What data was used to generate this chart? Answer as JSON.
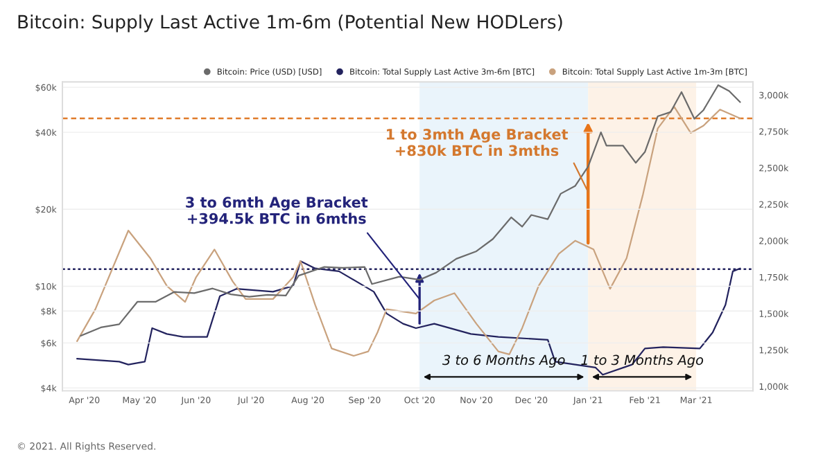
{
  "chart_data": {
    "type": "line",
    "title": "Bitcoin: Supply Last Active 1m-6m (Potential New HODLers)",
    "xlim": [
      "2020-03-20",
      "2021-04-01"
    ],
    "xticks": [
      {
        "value": "2020-04-01",
        "label": "Apr '20"
      },
      {
        "value": "2020-05-01",
        "label": "May '20"
      },
      {
        "value": "2020-06-01",
        "label": "Jun '20"
      },
      {
        "value": "2020-07-01",
        "label": "Jul '20"
      },
      {
        "value": "2020-08-01",
        "label": "Aug '20"
      },
      {
        "value": "2020-09-01",
        "label": "Sep '20"
      },
      {
        "value": "2020-10-01",
        "label": "Oct '20"
      },
      {
        "value": "2020-11-01",
        "label": "Nov '20"
      },
      {
        "value": "2020-12-01",
        "label": "Dec '20"
      },
      {
        "value": "2021-01-01",
        "label": "Jan '21"
      },
      {
        "value": "2021-02-01",
        "label": "Feb '21"
      },
      {
        "value": "2021-03-01",
        "label": "Mar '21"
      }
    ],
    "log": "y",
    "ylim": [
      3900,
      63000
    ],
    "yticks": [
      {
        "value": 4000,
        "label": "$4k"
      },
      {
        "value": 6000,
        "label": "$6k"
      },
      {
        "value": 8000,
        "label": "$8k"
      },
      {
        "value": 10000,
        "label": "$10k"
      },
      {
        "value": 20000,
        "label": "$20k"
      },
      {
        "value": 40000,
        "label": "$40k"
      },
      {
        "value": 60000,
        "label": "$60k"
      }
    ],
    "y2lim": [
      970,
      3090
    ],
    "y2ticks": [
      {
        "value": 1000,
        "label": "1,000k"
      },
      {
        "value": 1250,
        "label": "1,250k"
      },
      {
        "value": 1500,
        "label": "1,500k"
      },
      {
        "value": 1750,
        "label": "1,750k"
      },
      {
        "value": 2000,
        "label": "2,000k"
      },
      {
        "value": 2250,
        "label": "2,250k"
      },
      {
        "value": 2500,
        "label": "2,500k"
      },
      {
        "value": 2750,
        "label": "2,750k"
      },
      {
        "value": 3000,
        "label": "3,000k"
      }
    ],
    "grid": "y",
    "legend": "top right",
    "series": [
      {
        "name": "Bitcoin: Price (USD) [USD]",
        "color": "#6b6b6b",
        "x": [
          "2020-03-30",
          "2020-04-10",
          "2020-04-20",
          "2020-04-30",
          "2020-05-10",
          "2020-05-20",
          "2020-05-31",
          "2020-06-10",
          "2020-06-20",
          "2020-06-30",
          "2020-07-10",
          "2020-07-20",
          "2020-07-27",
          "2020-08-10",
          "2020-08-20",
          "2020-09-01",
          "2020-09-05",
          "2020-09-20",
          "2020-10-01",
          "2020-10-10",
          "2020-10-21",
          "2020-11-01",
          "2020-11-10",
          "2020-11-20",
          "2020-11-26",
          "2020-12-01",
          "2020-12-10",
          "2020-12-17",
          "2020-12-25",
          "2021-01-01",
          "2021-01-08",
          "2021-01-11",
          "2021-01-20",
          "2021-01-27",
          "2021-02-01",
          "2021-02-08",
          "2021-02-15",
          "2021-02-21",
          "2021-02-28",
          "2021-03-05",
          "2021-03-13",
          "2021-03-19",
          "2021-03-25"
        ],
        "values": [
          6400,
          6900,
          7100,
          8700,
          8700,
          9500,
          9400,
          9800,
          9300,
          9100,
          9250,
          9200,
          11000,
          11900,
          11800,
          11900,
          10200,
          10900,
          10600,
          11300,
          12800,
          13700,
          15300,
          18600,
          17100,
          19000,
          18300,
          23000,
          24700,
          29400,
          40000,
          35500,
          35500,
          30400,
          33500,
          46200,
          48000,
          57500,
          45200,
          48900,
          61200,
          58000,
          52500
        ]
      },
      {
        "name": "Bitcoin: Total Supply Last Active 3m-6m [BTC]",
        "color": "#23235e",
        "axis": "y2",
        "x": [
          "2020-03-28",
          "2020-04-20",
          "2020-04-25",
          "2020-05-04",
          "2020-05-08",
          "2020-05-16",
          "2020-05-25",
          "2020-06-07",
          "2020-06-14",
          "2020-06-23",
          "2020-07-13",
          "2020-07-24",
          "2020-07-28",
          "2020-08-05",
          "2020-08-18",
          "2020-09-06",
          "2020-09-13",
          "2020-09-22",
          "2020-09-29",
          "2020-10-09",
          "2020-10-29",
          "2020-11-13",
          "2020-12-10",
          "2020-12-14",
          "2021-01-05",
          "2021-01-09",
          "2021-01-25",
          "2021-02-01",
          "2021-02-11",
          "2021-03-03",
          "2021-03-10",
          "2021-03-17",
          "2021-03-21",
          "2021-03-25"
        ],
        "values": [
          1190,
          1170,
          1150,
          1170,
          1400,
          1360,
          1340,
          1340,
          1620,
          1670,
          1650,
          1690,
          1860,
          1810,
          1790,
          1650,
          1500,
          1430,
          1400,
          1430,
          1360,
          1340,
          1320,
          1170,
          1130,
          1080,
          1150,
          1260,
          1270,
          1260,
          1370,
          1560,
          1790,
          1810
        ]
      },
      {
        "name": "Bitcoin: Total Supply Last Active 1m-3m [BTC]",
        "color": "#c9a27e",
        "axis": "y2",
        "x": [
          "2020-03-28",
          "2020-04-07",
          "2020-04-25",
          "2020-05-07",
          "2020-05-16",
          "2020-05-26",
          "2020-06-01",
          "2020-06-11",
          "2020-06-21",
          "2020-06-28",
          "2020-07-13",
          "2020-07-24",
          "2020-07-28",
          "2020-08-05",
          "2020-08-14",
          "2020-08-26",
          "2020-09-03",
          "2020-09-08",
          "2020-09-13",
          "2020-09-29",
          "2020-10-09",
          "2020-10-20",
          "2020-11-01",
          "2020-11-13",
          "2020-11-19",
          "2020-11-26",
          "2020-12-05",
          "2020-12-16",
          "2020-12-25",
          "2021-01-04",
          "2021-01-13",
          "2021-01-22",
          "2021-01-31",
          "2021-02-08",
          "2021-02-17",
          "2021-02-26",
          "2021-03-05",
          "2021-03-14",
          "2021-03-25"
        ],
        "values": [
          1310,
          1530,
          2070,
          1880,
          1690,
          1580,
          1750,
          1940,
          1720,
          1600,
          1600,
          1750,
          1860,
          1560,
          1260,
          1210,
          1240,
          1370,
          1530,
          1500,
          1590,
          1640,
          1430,
          1240,
          1220,
          1400,
          1690,
          1910,
          2000,
          1940,
          1670,
          1880,
          2320,
          2770,
          2920,
          2740,
          2790,
          2900,
          2840
        ]
      }
    ],
    "bands": [
      {
        "axis": "x",
        "from": "2020-10-01",
        "to": "2021-01-01",
        "color": "#eaf4fb"
      },
      {
        "axis": "x",
        "from": "2021-01-01",
        "to": "2021-03-01",
        "color": "#fdf2e7"
      }
    ],
    "ref_lines": [
      {
        "axis": "y2",
        "value": 1805,
        "color": "#23235e",
        "line_style": "dotted"
      },
      {
        "axis": "y2",
        "value": 2840,
        "color": "#e07b2a",
        "line_style": "dashed"
      }
    ],
    "annotations": [
      {
        "text": "1 to 3mth Age Bracket\n+830k BTC in 3mths",
        "x": "2021-01-01",
        "y": 23400
      },
      {
        "text": "3 to 6mth Age Bracket\n+394.5k BTC in 6mths",
        "x": "2020-10-01",
        "y": 8900
      },
      "3 to 6 Months Ago",
      "1 to 3 Months Ago",
      "© 2021. All Rights Reserved."
    ]
  }
}
